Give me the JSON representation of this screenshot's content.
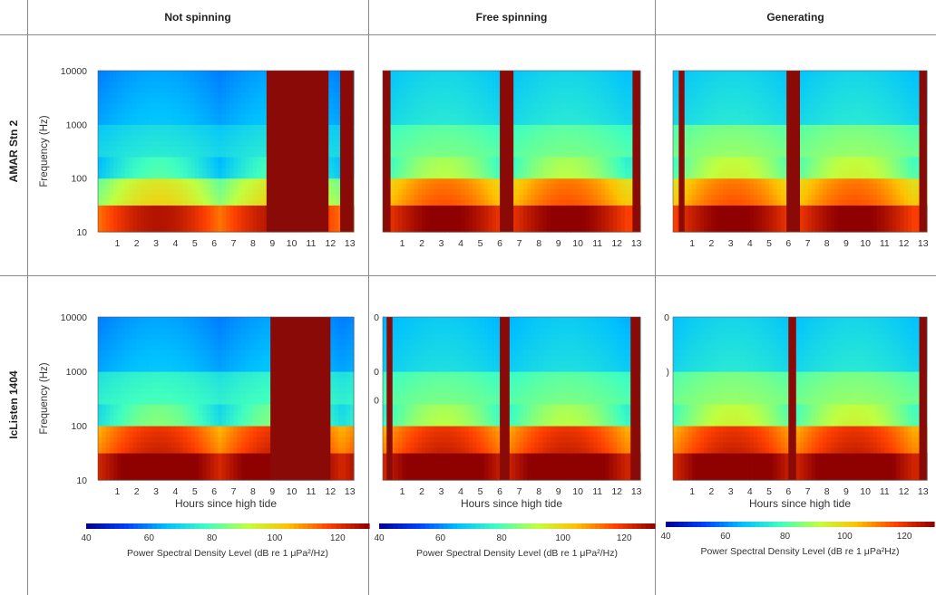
{
  "columns": [
    "Not spinning",
    "Free spinning",
    "Generating"
  ],
  "rows": [
    "AMAR Stn 2",
    "IcListen 1404"
  ],
  "colors": {
    "blank": "#8a0a08",
    "colormap": [
      "#00008f",
      "#0040ff",
      "#00c0ff",
      "#40ffbf",
      "#c0ff40",
      "#ffc000",
      "#ff4000",
      "#8f0000"
    ]
  },
  "chart_data": [
    {
      "type": "heatmap",
      "panel": "AMAR Stn 2 / Not spinning",
      "ylabel": "Frequency (Hz)",
      "xlabel": "",
      "yscale": "log",
      "y_ticks": [
        10,
        100,
        1000,
        10000
      ],
      "y_tick_labels": [
        "10",
        "100",
        "1000",
        "10000"
      ],
      "x_ticks": [
        "1",
        "2",
        "3",
        "4",
        "5",
        "6",
        "7",
        "8",
        "9",
        "10",
        "11",
        "12",
        "13"
      ],
      "xlim": [
        0,
        13.2
      ],
      "ylim": [
        10,
        10000
      ],
      "no_data_intervals": [
        [
          8.7,
          11.9
        ],
        [
          12.5,
          13.2
        ]
      ],
      "level_bands_dB": {
        "10-30Hz": 120,
        "30-100Hz": 95,
        "100-1000Hz": 75,
        "1000-10000Hz": 65
      }
    },
    {
      "type": "heatmap",
      "panel": "AMAR Stn 2 / Free spinning",
      "yscale": "log",
      "x_ticks": [
        "1",
        "2",
        "3",
        "4",
        "5",
        "6",
        "7",
        "8",
        "9",
        "10",
        "11",
        "12",
        "13"
      ],
      "xlim": [
        0,
        13.2
      ],
      "ylim": [
        10,
        10000
      ],
      "no_data_intervals": [
        [
          0,
          0.4
        ],
        [
          6.0,
          6.7
        ],
        [
          12.8,
          13.2
        ]
      ],
      "level_bands_dB": {
        "10-30Hz": 125,
        "30-100Hz": 110,
        "100-1000Hz": 85,
        "1000-10000Hz": 72
      }
    },
    {
      "type": "heatmap",
      "panel": "AMAR Stn 2 / Generating",
      "yscale": "log",
      "x_ticks": [
        "1",
        "2",
        "3",
        "4",
        "5",
        "6",
        "7",
        "8",
        "9",
        "10",
        "11",
        "12",
        "13"
      ],
      "xlim": [
        0,
        13.2
      ],
      "ylim": [
        10,
        10000
      ],
      "no_data_intervals": [
        [
          0.3,
          0.6
        ],
        [
          5.9,
          6.6
        ],
        [
          12.8,
          13.2
        ]
      ],
      "level_bands_dB": {
        "10-30Hz": 125,
        "30-100Hz": 110,
        "100-1000Hz": 88,
        "1000-10000Hz": 72
      }
    },
    {
      "type": "heatmap",
      "panel": "IcListen 1404 / Not spinning",
      "ylabel": "Frequency (Hz)",
      "xlabel": "Hours since high tide",
      "yscale": "log",
      "y_ticks": [
        10,
        100,
        1000,
        10000
      ],
      "y_tick_labels": [
        "10",
        "100",
        "1000",
        "10000"
      ],
      "x_ticks": [
        "1",
        "2",
        "3",
        "4",
        "5",
        "6",
        "7",
        "8",
        "9",
        "10",
        "11",
        "12",
        "13"
      ],
      "xlim": [
        0,
        13.2
      ],
      "ylim": [
        10,
        10000
      ],
      "no_data_intervals": [
        [
          8.9,
          12.0
        ]
      ],
      "level_bands_dB": {
        "10-30Hz": 130,
        "30-100Hz": 118,
        "100-1000Hz": 80,
        "1000-10000Hz": 65
      }
    },
    {
      "type": "heatmap",
      "panel": "IcListen 1404 / Free spinning",
      "xlabel": "Hours since high tide",
      "yscale": "log",
      "y_tick_labels": [
        "0",
        "0",
        "0"
      ],
      "x_ticks": [
        "1",
        "2",
        "3",
        "4",
        "5",
        "6",
        "7",
        "8",
        "9",
        "10",
        "11",
        "12",
        "13"
      ],
      "xlim": [
        0,
        13.2
      ],
      "ylim": [
        10,
        10000
      ],
      "no_data_intervals": [
        [
          0.2,
          0.5
        ],
        [
          6.0,
          6.5
        ],
        [
          12.7,
          13.2
        ]
      ],
      "level_bands_dB": {
        "10-30Hz": 130,
        "30-100Hz": 118,
        "100-1000Hz": 85,
        "1000-10000Hz": 70
      }
    },
    {
      "type": "heatmap",
      "panel": "IcListen 1404 / Generating",
      "xlabel": "Hours since high tide",
      "yscale": "log",
      "y_tick_labels": [
        "0",
        ")"
      ],
      "x_ticks": [
        "1",
        "2",
        "3",
        "4",
        "5",
        "6",
        "7",
        "8",
        "9",
        "10",
        "11",
        "12",
        "13"
      ],
      "xlim": [
        0,
        13.2
      ],
      "ylim": [
        10,
        10000
      ],
      "no_data_intervals": [
        [
          6.0,
          6.4
        ],
        [
          12.8,
          13.2
        ]
      ],
      "level_bands_dB": {
        "10-30Hz": 130,
        "30-100Hz": 118,
        "100-1000Hz": 88,
        "1000-10000Hz": 72
      }
    }
  ],
  "colorbars": [
    {
      "ticks": [
        "40",
        "60",
        "80",
        "100",
        "120"
      ],
      "range": [
        40,
        130
      ],
      "label": "Power Spectral Density Level (dB re 1 μPa²/Hz)"
    },
    {
      "ticks": [
        "40",
        "60",
        "80",
        "100",
        "120"
      ],
      "range": [
        40,
        130
      ],
      "label": "Power Spectral Density Level (dB re 1 μPa²/Hz)"
    },
    {
      "ticks": [
        "40",
        "60",
        "80",
        "100",
        "120"
      ],
      "range": [
        40,
        130
      ],
      "label": "Power Spectral Density Level (dB re 1 μPa²Hz)"
    }
  ]
}
